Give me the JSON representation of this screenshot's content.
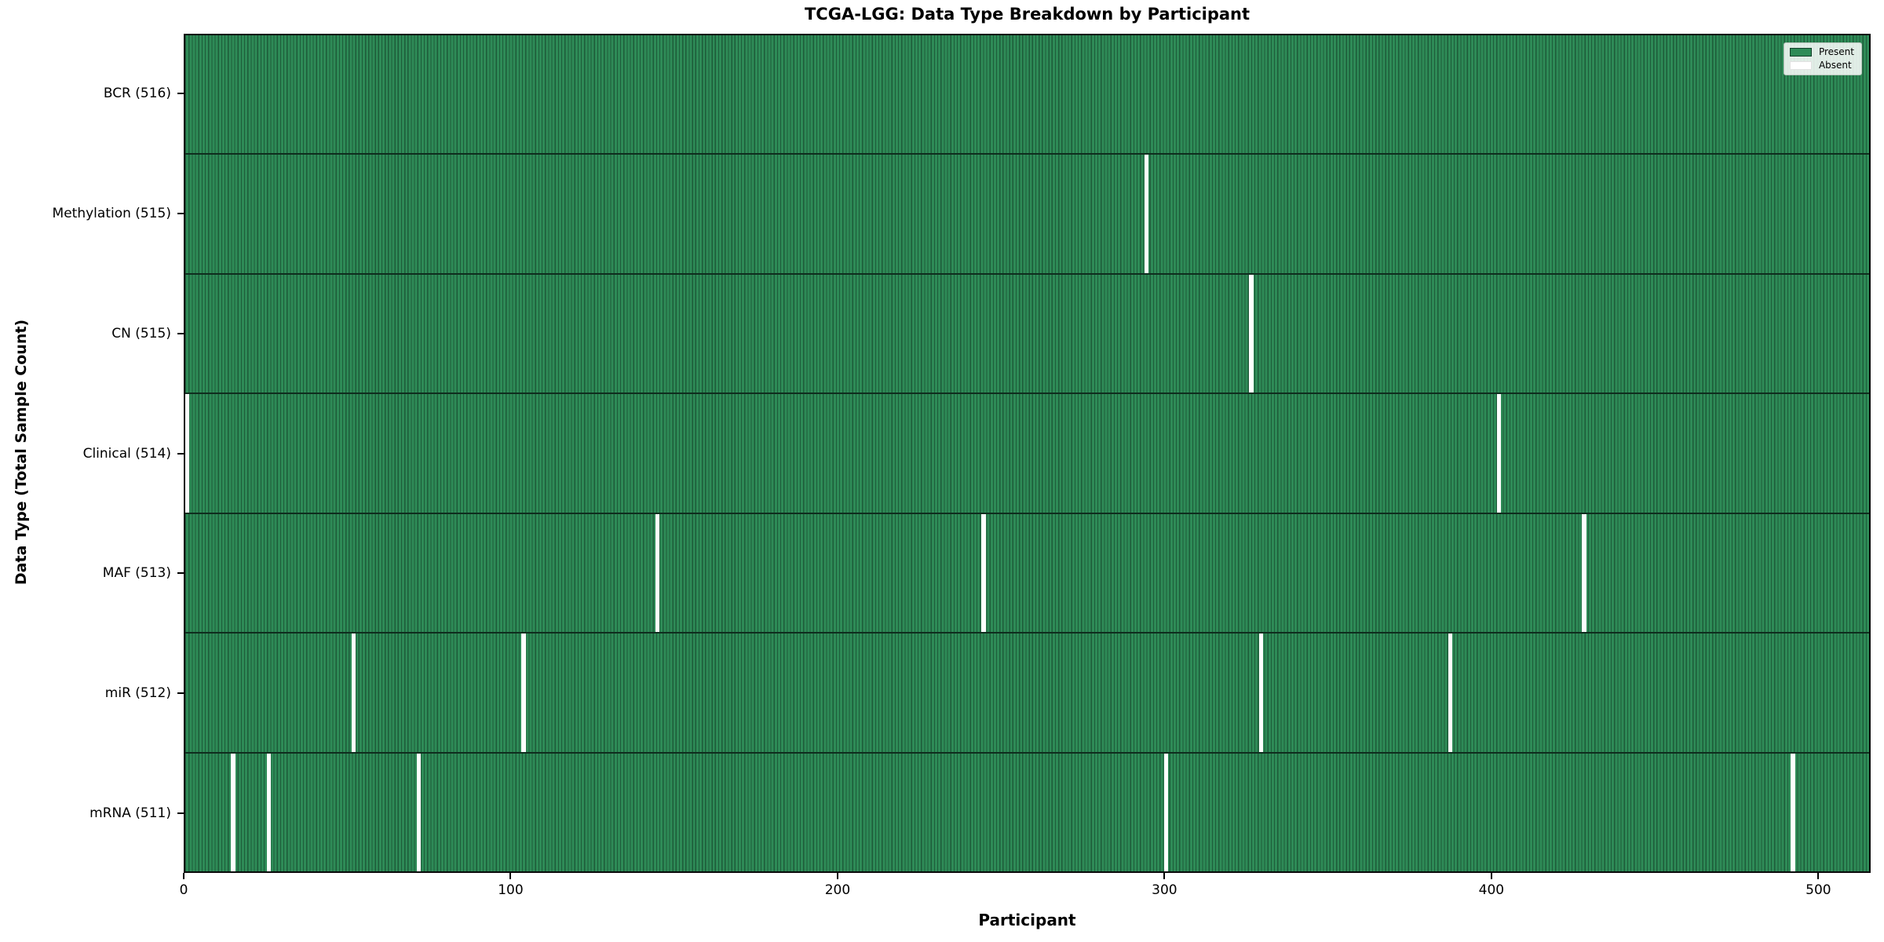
{
  "title": "TCGA-LGG: Data Type Breakdown by Participant",
  "axes": {
    "x_label": "Participant",
    "y_label": "Data Type (Total Sample Count)"
  },
  "legend": {
    "items": [
      {
        "label": "Present",
        "color": "#2e8b57"
      },
      {
        "label": "Absent",
        "color": "#ffffff"
      }
    ]
  },
  "chart_data": {
    "type": "heatmap",
    "title": "TCGA-LGG: Data Type Breakdown by Participant",
    "xlabel": "Participant",
    "ylabel": "Data Type (Total Sample Count)",
    "x_ticks": [
      0,
      100,
      200,
      300,
      400,
      500
    ],
    "x_range": [
      0,
      516
    ],
    "n_participants": 516,
    "present_color": "#2e8b57",
    "present_edge_color": "#1d5b39",
    "absent_color": "#ffffff",
    "legend_position": "upper right",
    "grid": false,
    "rows": [
      {
        "data_type": "BCR",
        "label": "BCR (516)",
        "total": 516,
        "absent_participants": []
      },
      {
        "data_type": "Methylation",
        "label": "Methylation (515)",
        "total": 515,
        "absent_participants": [
          294
        ]
      },
      {
        "data_type": "CN",
        "label": "CN (515)",
        "total": 515,
        "absent_participants": [
          326
        ]
      },
      {
        "data_type": "Clinical",
        "label": "Clinical (514)",
        "total": 514,
        "absent_participants": [
          0,
          402
        ]
      },
      {
        "data_type": "MAF",
        "label": "MAF (513)",
        "total": 513,
        "absent_participants": [
          144,
          244,
          428
        ]
      },
      {
        "data_type": "miR",
        "label": "miR (512)",
        "total": 512,
        "absent_participants": [
          51,
          103,
          329,
          387
        ]
      },
      {
        "data_type": "mRNA",
        "label": "mRNA (511)",
        "total": 511,
        "absent_participants": [
          14,
          25,
          71,
          300,
          492
        ]
      }
    ]
  }
}
